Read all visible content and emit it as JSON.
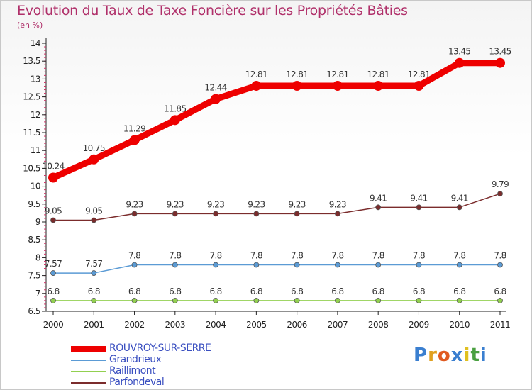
{
  "title": "Evolution du Taux de Taxe Foncière sur les Propriétés Bâties",
  "unit": "(en %)",
  "logo": {
    "text": "Proxiti",
    "colors": [
      "#3a7fd0",
      "#e0a020",
      "#e05a20",
      "#3a7fd0",
      "#e0c020",
      "#4aa040",
      "#3a7fd0"
    ]
  },
  "chart_data": {
    "type": "line",
    "x": [
      "2000",
      "2001",
      "2002",
      "2003",
      "2004",
      "2005",
      "2006",
      "2007",
      "2008",
      "2009",
      "2010",
      "2011"
    ],
    "ylim": [
      6.5,
      14
    ],
    "yticks": [
      "6.5",
      "7",
      "7.5",
      "8",
      "8.5",
      "9",
      "9.5",
      "10",
      "10.5",
      "11",
      "11.5",
      "12",
      "12.5",
      "13",
      "13.5",
      "14"
    ],
    "grid": false,
    "legend_position": "bottom-left",
    "series": [
      {
        "name": "ROUVROY-SUR-SERRE",
        "color": "#ee0000",
        "thick": true,
        "values": [
          10.24,
          10.75,
          11.29,
          11.85,
          12.44,
          12.81,
          12.81,
          12.81,
          12.81,
          12.81,
          13.45,
          13.45
        ],
        "labels": [
          "10.24",
          "10.75",
          "11.29",
          "11.85",
          "12.44",
          "12.81",
          "12.81",
          "12.81",
          "12.81",
          "12.81",
          "13.45",
          "13.45"
        ]
      },
      {
        "name": "Grandrieux",
        "color": "#5b9bd5",
        "thick": false,
        "values": [
          7.57,
          7.57,
          7.8,
          7.8,
          7.8,
          7.8,
          7.8,
          7.8,
          7.8,
          7.8,
          7.8,
          7.8
        ],
        "labels": [
          "7.57",
          "7.57",
          "7.8",
          "7.8",
          "7.8",
          "7.8",
          "7.8",
          "7.8",
          "7.8",
          "7.8",
          "7.8",
          "7.8"
        ]
      },
      {
        "name": "Raillimont",
        "color": "#92d050",
        "thick": false,
        "values": [
          6.8,
          6.8,
          6.8,
          6.8,
          6.8,
          6.8,
          6.8,
          6.8,
          6.8,
          6.8,
          6.8,
          6.8
        ],
        "labels": [
          "6.8",
          "6.8",
          "6.8",
          "6.8",
          "6.8",
          "6.8",
          "6.8",
          "6.8",
          "6.8",
          "6.8",
          "6.8",
          "6.8"
        ]
      },
      {
        "name": "Parfondeval",
        "color": "#7b2c2c",
        "thick": false,
        "values": [
          9.05,
          9.05,
          9.23,
          9.23,
          9.23,
          9.23,
          9.23,
          9.23,
          9.41,
          9.41,
          9.41,
          9.79
        ],
        "labels": [
          "9.05",
          "9.05",
          "9.23",
          "9.23",
          "9.23",
          "9.23",
          "9.23",
          "9.23",
          "9.41",
          "9.41",
          "9.41",
          "9.79"
        ]
      }
    ]
  }
}
